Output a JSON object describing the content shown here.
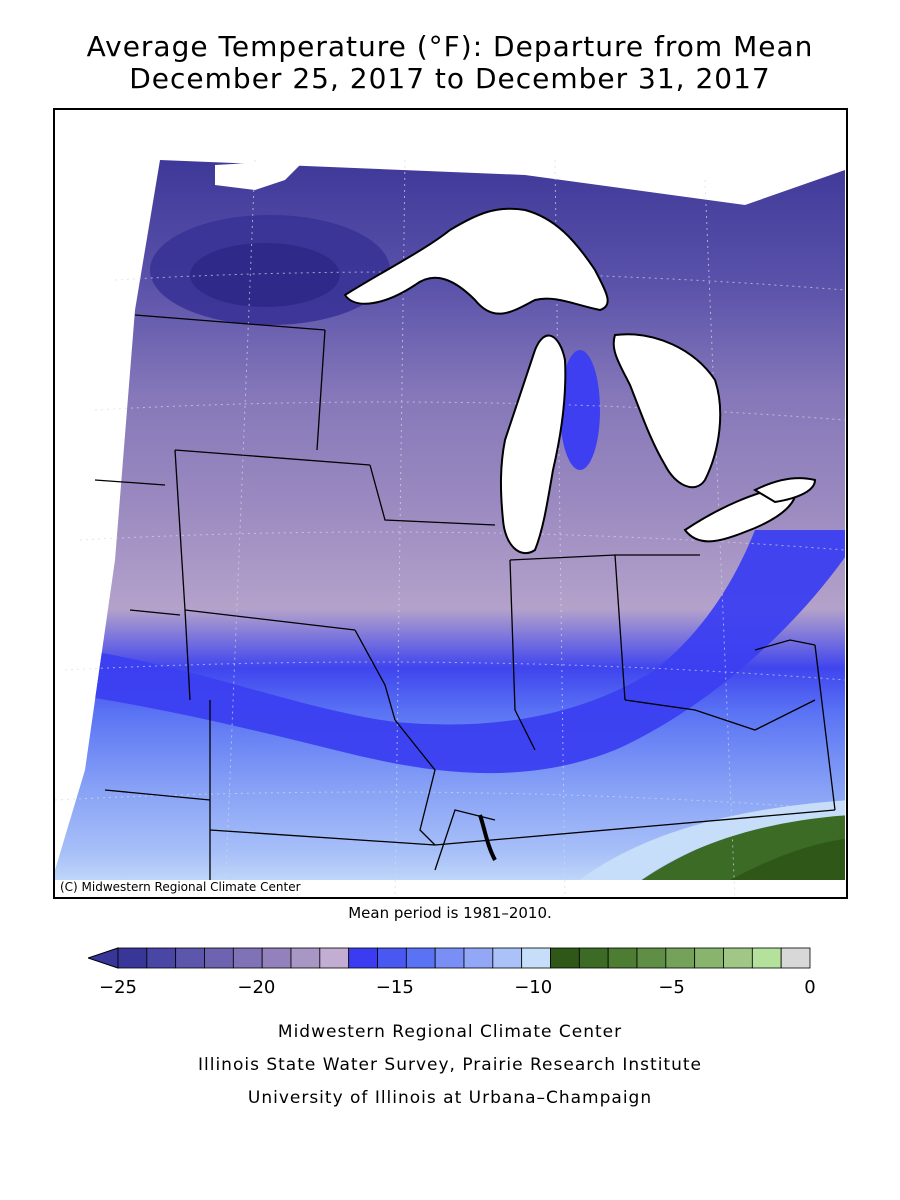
{
  "title_line1": "Average Temperature (°F): Departure from Mean",
  "title_line2": "December 25, 2017 to December 31, 2017",
  "copyright": "(C) Midwestern Regional Climate Center",
  "mean_period": "Mean period is 1981–2010.",
  "legend": {
    "colors": [
      "#39369a",
      "#4a46a6",
      "#5c56ac",
      "#6d63b1",
      "#7f72b7",
      "#9281bd",
      "#a897c4",
      "#c3aed3",
      "#3b3cf2",
      "#4a58f2",
      "#5a73f4",
      "#7a8ff5",
      "#92a8f7",
      "#aac2f8",
      "#c6def9",
      "#2f5818",
      "#3b6b24",
      "#4d7d33",
      "#5f8f45",
      "#74a25a",
      "#88b46d",
      "#a0c785",
      "#b4e29c",
      "#d8d8d8"
    ],
    "tick_values": [
      -25,
      -20,
      -15,
      -10,
      -5,
      0
    ],
    "tick_labels": [
      "−25",
      "−20",
      "−15",
      "−10",
      "−5",
      "0"
    ]
  },
  "footer": {
    "line1": "Midwestern Regional Climate Center",
    "line2": "Illinois State Water Survey, Prairie Research Institute",
    "line3": "University of Illinois at Urbana–Champaign"
  }
}
